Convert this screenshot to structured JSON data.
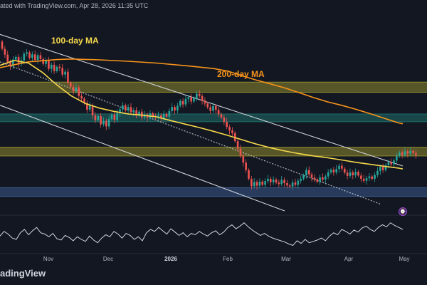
{
  "header": {
    "publish_text": "ated with TradingView.com, Apr 28, 2026 11:35 UTC"
  },
  "footer": {
    "logo_text": "adingView"
  },
  "labels": {
    "ma100": "100-day MA",
    "ma200": "200-day MA"
  },
  "alert": {
    "icon": "clock-icon",
    "glyph": "⌚"
  },
  "colors": {
    "background": "#131722",
    "up": "#26a69a",
    "down": "#ef5350",
    "ma100": "#f5d84b",
    "ma200": "#f7931a",
    "resistance_zone": "#8f8a2e",
    "support_zone": "#3b5a8c",
    "supply_zone": "#1f6e6a",
    "channel": "#d1d4dc",
    "rsi": "#d1d4dc"
  },
  "chart_data": {
    "type": "candlestick",
    "x_ticks": [
      {
        "label": "Nov",
        "bold": false
      },
      {
        "label": "Dec",
        "bold": false
      },
      {
        "label": "2026",
        "bold": true
      },
      {
        "label": "Feb",
        "bold": false
      },
      {
        "label": "Mar",
        "bold": false
      },
      {
        "label": "Apr",
        "bold": false
      },
      {
        "label": "May",
        "bold": false
      }
    ],
    "ylim": [
      60000,
      126000
    ],
    "candles": [
      [
        119000,
        116500
      ],
      [
        116500,
        114500
      ],
      [
        114500,
        112000
      ],
      [
        112000,
        110500
      ],
      [
        110500,
        112800
      ],
      [
        112800,
        113700
      ],
      [
        113700,
        111200
      ],
      [
        111200,
        112500
      ],
      [
        112500,
        114800
      ],
      [
        114800,
        115300
      ],
      [
        115300,
        113400
      ],
      [
        113400,
        114600
      ],
      [
        114600,
        112700
      ],
      [
        112700,
        114300
      ],
      [
        114300,
        113000
      ],
      [
        113000,
        111300
      ],
      [
        111300,
        112400
      ],
      [
        112400,
        109600
      ],
      [
        109600,
        111000
      ],
      [
        111000,
        108800
      ],
      [
        108800,
        110300
      ],
      [
        110300,
        109900
      ],
      [
        109900,
        107600
      ],
      [
        107600,
        108600
      ],
      [
        108600,
        104800
      ],
      [
        104800,
        103400
      ],
      [
        103400,
        101800
      ],
      [
        101800,
        103200
      ],
      [
        103200,
        100200
      ],
      [
        100200,
        99300
      ],
      [
        99300,
        97800
      ],
      [
        97800,
        95500
      ],
      [
        95500,
        96900
      ],
      [
        96900,
        93500
      ],
      [
        93500,
        91800
      ],
      [
        91800,
        93300
      ],
      [
        93300,
        90400
      ],
      [
        90400,
        91600
      ],
      [
        91600,
        89700
      ],
      [
        89700,
        92200
      ],
      [
        92200,
        93800
      ],
      [
        93800,
        91900
      ],
      [
        91900,
        94300
      ],
      [
        94300,
        95600
      ],
      [
        95600,
        97000
      ],
      [
        97000,
        95200
      ],
      [
        95200,
        96400
      ],
      [
        96400,
        94600
      ],
      [
        94600,
        95300
      ],
      [
        95300,
        93400
      ],
      [
        93400,
        94800
      ],
      [
        94800,
        92800
      ],
      [
        92800,
        93700
      ],
      [
        93700,
        92700
      ],
      [
        92700,
        94200
      ],
      [
        94200,
        93200
      ],
      [
        93200,
        92900
      ],
      [
        92900,
        93500
      ],
      [
        93500,
        92600
      ],
      [
        92600,
        94000
      ],
      [
        94000,
        93100
      ],
      [
        93100,
        95000
      ],
      [
        95000,
        96400
      ],
      [
        96400,
        95200
      ],
      [
        95200,
        96800
      ],
      [
        96800,
        98500
      ],
      [
        98500,
        97300
      ],
      [
        97300,
        99200
      ],
      [
        99200,
        99800
      ],
      [
        99800,
        98300
      ],
      [
        98300,
        99500
      ],
      [
        99500,
        101000
      ],
      [
        101000,
        100200
      ],
      [
        100200,
        98600
      ],
      [
        98600,
        97600
      ],
      [
        97600,
        96300
      ],
      [
        96300,
        95100
      ],
      [
        95100,
        96700
      ],
      [
        96700,
        95400
      ],
      [
        95400,
        93900
      ],
      [
        93900,
        92800
      ],
      [
        92800,
        91300
      ],
      [
        91300,
        89500
      ],
      [
        89500,
        88300
      ],
      [
        88300,
        87400
      ],
      [
        87400,
        84600
      ],
      [
        84600,
        82000
      ],
      [
        82000,
        79500
      ],
      [
        79500,
        77200
      ],
      [
        77200,
        74600
      ],
      [
        74600,
        71600
      ],
      [
        71600,
        69000
      ],
      [
        69000,
        70500
      ],
      [
        70500,
        69200
      ],
      [
        69200,
        70600
      ],
      [
        70600,
        69500
      ],
      [
        69500,
        70800
      ],
      [
        70800,
        71600
      ],
      [
        71600,
        70400
      ],
      [
        70400,
        71300
      ],
      [
        71300,
        70300
      ],
      [
        70300,
        69800
      ],
      [
        69800,
        71200
      ],
      [
        71200,
        70100
      ],
      [
        70100,
        69300
      ],
      [
        69300,
        68900
      ],
      [
        68900,
        70300
      ],
      [
        70300,
        69500
      ],
      [
        69500,
        70900
      ],
      [
        70900,
        71600
      ],
      [
        71600,
        72800
      ],
      [
        72800,
        74600
      ],
      [
        74600,
        73100
      ],
      [
        73100,
        72000
      ],
      [
        72000,
        71400
      ],
      [
        71400,
        70600
      ],
      [
        70600,
        72100
      ],
      [
        72100,
        71300
      ],
      [
        71300,
        72400
      ],
      [
        72400,
        73800
      ],
      [
        73800,
        74700
      ],
      [
        74700,
        73800
      ],
      [
        73800,
        75000
      ],
      [
        75000,
        76100
      ],
      [
        76100,
        75100
      ],
      [
        75100,
        73700
      ],
      [
        73700,
        72600
      ],
      [
        72600,
        73800
      ],
      [
        73800,
        72800
      ],
      [
        72800,
        74000
      ],
      [
        74000,
        72700
      ],
      [
        72700,
        71600
      ],
      [
        71600,
        70900
      ],
      [
        70900,
        71800
      ],
      [
        71800,
        72400
      ],
      [
        72400,
        71600
      ],
      [
        71600,
        72900
      ],
      [
        72900,
        74300
      ],
      [
        74300,
        75700
      ],
      [
        75700,
        74600
      ],
      [
        74600,
        76300
      ],
      [
        76300,
        77300
      ],
      [
        77300,
        76600
      ],
      [
        76600,
        77900
      ],
      [
        77900,
        79400
      ],
      [
        79400,
        80700
      ],
      [
        80700,
        79800
      ],
      [
        79800,
        81100
      ],
      [
        81100,
        80300
      ],
      [
        80300,
        81200
      ],
      [
        81200,
        80500
      ],
      [
        80500,
        79700
      ]
    ],
    "ma100": [
      [
        0,
        110800
      ],
      [
        20,
        112500
      ],
      [
        40,
        111600
      ],
      [
        60,
        108300
      ],
      [
        80,
        104000
      ],
      [
        100,
        100300
      ],
      [
        120,
        97600
      ],
      [
        140,
        96000
      ],
      [
        160,
        94900
      ],
      [
        180,
        94000
      ],
      [
        200,
        93600
      ],
      [
        220,
        93000
      ],
      [
        240,
        91700
      ],
      [
        260,
        90500
      ],
      [
        280,
        89300
      ],
      [
        300,
        88000
      ],
      [
        320,
        86600
      ],
      [
        340,
        85100
      ],
      [
        360,
        83600
      ],
      [
        380,
        82300
      ],
      [
        400,
        81200
      ],
      [
        420,
        80300
      ],
      [
        440,
        79500
      ],
      [
        460,
        78900
      ],
      [
        480,
        78100
      ],
      [
        500,
        77300
      ],
      [
        520,
        76600
      ],
      [
        540,
        75900
      ],
      [
        560,
        75300
      ],
      [
        566,
        75000
      ]
    ],
    "ma200": [
      [
        0,
        110000
      ],
      [
        40,
        112000
      ],
      [
        80,
        112800
      ],
      [
        100,
        113000
      ],
      [
        140,
        112700
      ],
      [
        180,
        112200
      ],
      [
        220,
        111600
      ],
      [
        260,
        110700
      ],
      [
        300,
        109700
      ],
      [
        320,
        108800
      ],
      [
        340,
        107200
      ],
      [
        360,
        105700
      ],
      [
        380,
        104400
      ],
      [
        400,
        103000
      ],
      [
        420,
        101400
      ],
      [
        440,
        99700
      ],
      [
        460,
        98200
      ],
      [
        480,
        97000
      ],
      [
        500,
        95600
      ],
      [
        520,
        94100
      ],
      [
        540,
        92500
      ],
      [
        560,
        90900
      ],
      [
        566,
        90600
      ]
    ],
    "zones": [
      {
        "name": "upper-resistance-zone",
        "y_top": 105000,
        "y_bottom": 101500,
        "color_key": "resistance_zone"
      },
      {
        "name": "supply-zone",
        "y_top": 94000,
        "y_bottom": 91300,
        "color_key": "supply_zone"
      },
      {
        "name": "mid-resistance-zone",
        "y_top": 82500,
        "y_bottom": 79500,
        "color_key": "resistance_zone"
      },
      {
        "name": "support-zone",
        "y_top": 68500,
        "y_bottom": 65500,
        "color_key": "support_zone"
      }
    ],
    "channel": {
      "upper": [
        [
          0,
          121500
        ],
        [
          566,
          76000
        ]
      ],
      "lower": [
        [
          0,
          97000
        ],
        [
          400,
          60500
        ]
      ],
      "mid": [
        [
          0,
          112000
        ],
        [
          535,
          62800
        ]
      ]
    },
    "rsi": [
      45,
      52,
      48,
      42,
      40,
      50,
      55,
      47,
      53,
      58,
      50,
      48,
      44,
      49,
      41,
      39,
      46,
      43,
      38,
      44,
      40,
      37,
      45,
      39,
      35,
      42,
      47,
      44,
      52,
      48,
      42,
      49,
      46,
      40,
      44,
      38,
      50,
      55,
      52,
      58,
      53,
      48,
      56,
      51,
      46,
      50,
      44,
      49,
      47,
      52,
      48,
      45,
      50,
      53,
      47,
      51,
      58,
      62,
      56,
      60,
      65,
      59,
      54,
      50,
      46,
      49,
      45,
      42,
      40,
      38,
      36,
      33,
      31,
      38,
      34,
      40,
      35,
      37,
      39,
      42,
      38,
      45,
      50,
      47,
      55,
      52,
      48,
      54,
      51,
      57,
      60,
      55,
      52,
      58,
      62,
      59,
      65,
      61,
      58,
      55
    ]
  }
}
